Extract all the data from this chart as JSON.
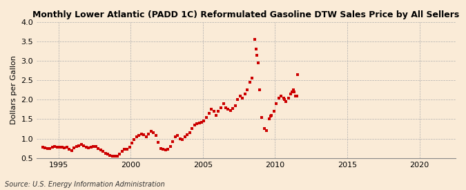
{
  "title": "Monthly Lower Atlantic (PADD 1C) Reformulated Gasoline DTW Sales Price by All Sellers",
  "ylabel": "Dollars per Gallon",
  "source": "Source: U.S. Energy Information Administration",
  "bg_color": "#faebd7",
  "marker_color": "#cc0000",
  "xlim": [
    1993.5,
    2022.5
  ],
  "ylim": [
    0.5,
    4.0
  ],
  "yticks": [
    0.5,
    1.0,
    1.5,
    2.0,
    2.5,
    3.0,
    3.5,
    4.0
  ],
  "xticks": [
    1995,
    2000,
    2005,
    2010,
    2015,
    2020
  ],
  "data": [
    [
      1993.92,
      0.78
    ],
    [
      1994.08,
      0.76
    ],
    [
      1994.25,
      0.74
    ],
    [
      1994.42,
      0.74
    ],
    [
      1994.58,
      0.78
    ],
    [
      1994.75,
      0.8
    ],
    [
      1994.92,
      0.78
    ],
    [
      1995.08,
      0.77
    ],
    [
      1995.25,
      0.77
    ],
    [
      1995.42,
      0.76
    ],
    [
      1995.58,
      0.78
    ],
    [
      1995.75,
      0.72
    ],
    [
      1995.92,
      0.69
    ],
    [
      1996.08,
      0.76
    ],
    [
      1996.25,
      0.8
    ],
    [
      1996.42,
      0.82
    ],
    [
      1996.58,
      0.85
    ],
    [
      1996.75,
      0.82
    ],
    [
      1996.92,
      0.78
    ],
    [
      1997.08,
      0.76
    ],
    [
      1997.25,
      0.77
    ],
    [
      1997.42,
      0.79
    ],
    [
      1997.58,
      0.8
    ],
    [
      1997.75,
      0.74
    ],
    [
      1997.92,
      0.7
    ],
    [
      1998.08,
      0.68
    ],
    [
      1998.25,
      0.62
    ],
    [
      1998.42,
      0.6
    ],
    [
      1998.58,
      0.57
    ],
    [
      1998.75,
      0.55
    ],
    [
      1998.92,
      0.54
    ],
    [
      1999.08,
      0.55
    ],
    [
      1999.25,
      0.6
    ],
    [
      1999.42,
      0.68
    ],
    [
      1999.58,
      0.72
    ],
    [
      1999.75,
      0.72
    ],
    [
      1999.92,
      0.78
    ],
    [
      2000.08,
      0.88
    ],
    [
      2000.25,
      0.98
    ],
    [
      2000.42,
      1.05
    ],
    [
      2000.58,
      1.08
    ],
    [
      2000.75,
      1.12
    ],
    [
      2000.92,
      1.1
    ],
    [
      2001.08,
      1.05
    ],
    [
      2001.25,
      1.12
    ],
    [
      2001.42,
      1.18
    ],
    [
      2001.58,
      1.15
    ],
    [
      2001.75,
      1.08
    ],
    [
      2001.92,
      0.9
    ],
    [
      2002.08,
      0.75
    ],
    [
      2002.25,
      0.72
    ],
    [
      2002.42,
      0.7
    ],
    [
      2002.58,
      0.72
    ],
    [
      2002.75,
      0.8
    ],
    [
      2002.92,
      0.92
    ],
    [
      2003.08,
      1.05
    ],
    [
      2003.25,
      1.08
    ],
    [
      2003.42,
      1.0
    ],
    [
      2003.58,
      0.98
    ],
    [
      2003.75,
      1.05
    ],
    [
      2003.92,
      1.1
    ],
    [
      2004.08,
      1.15
    ],
    [
      2004.25,
      1.25
    ],
    [
      2004.42,
      1.35
    ],
    [
      2004.58,
      1.38
    ],
    [
      2004.75,
      1.4
    ],
    [
      2004.92,
      1.42
    ],
    [
      2005.08,
      1.45
    ],
    [
      2005.25,
      1.55
    ],
    [
      2005.42,
      1.65
    ],
    [
      2005.58,
      1.75
    ],
    [
      2005.75,
      1.7
    ],
    [
      2005.92,
      1.6
    ],
    [
      2006.08,
      1.7
    ],
    [
      2006.25,
      1.8
    ],
    [
      2006.42,
      1.9
    ],
    [
      2006.58,
      1.8
    ],
    [
      2006.75,
      1.75
    ],
    [
      2006.92,
      1.72
    ],
    [
      2007.08,
      1.78
    ],
    [
      2007.25,
      1.85
    ],
    [
      2007.42,
      2.0
    ],
    [
      2007.58,
      2.1
    ],
    [
      2007.75,
      2.05
    ],
    [
      2007.92,
      2.15
    ],
    [
      2008.08,
      2.25
    ],
    [
      2008.25,
      2.45
    ],
    [
      2008.42,
      2.55
    ],
    [
      2008.58,
      3.55
    ],
    [
      2008.67,
      3.3
    ],
    [
      2008.75,
      3.15
    ],
    [
      2008.83,
      2.95
    ],
    [
      2008.92,
      2.25
    ],
    [
      2009.08,
      1.55
    ],
    [
      2009.25,
      1.25
    ],
    [
      2009.42,
      1.2
    ],
    [
      2009.58,
      1.5
    ],
    [
      2009.67,
      1.58
    ],
    [
      2009.75,
      1.6
    ],
    [
      2009.92,
      1.7
    ],
    [
      2010.08,
      1.9
    ],
    [
      2010.25,
      2.05
    ],
    [
      2010.42,
      2.1
    ],
    [
      2010.58,
      2.05
    ],
    [
      2010.67,
      2.0
    ],
    [
      2010.75,
      1.95
    ],
    [
      2010.92,
      2.05
    ],
    [
      2011.08,
      2.15
    ],
    [
      2011.17,
      2.2
    ],
    [
      2011.25,
      2.25
    ],
    [
      2011.33,
      2.2
    ],
    [
      2011.42,
      2.1
    ],
    [
      2011.5,
      2.1
    ],
    [
      2011.58,
      2.65
    ]
  ]
}
